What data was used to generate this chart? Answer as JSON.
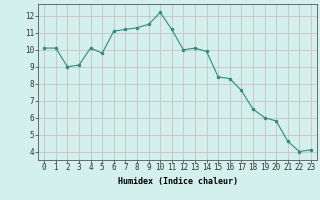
{
  "x": [
    0,
    1,
    2,
    3,
    4,
    5,
    6,
    7,
    8,
    9,
    10,
    11,
    12,
    13,
    14,
    15,
    16,
    17,
    18,
    19,
    20,
    21,
    22,
    23
  ],
  "y": [
    10.1,
    10.1,
    9.0,
    9.1,
    10.1,
    9.8,
    11.1,
    11.2,
    11.3,
    11.5,
    12.2,
    11.2,
    10.0,
    10.1,
    9.9,
    8.4,
    8.3,
    7.6,
    6.5,
    6.0,
    5.8,
    4.6,
    4.0,
    4.1
  ],
  "line_color": "#2e8b7a",
  "marker_color": "#2e8b7a",
  "bg_color": "#d4f0ec",
  "grid_color": "#c8b8b8",
  "xlabel": "Humidex (Indice chaleur)",
  "ylabel": "",
  "xlim": [
    -0.5,
    23.5
  ],
  "ylim": [
    3.5,
    12.7
  ],
  "yticks": [
    4,
    5,
    6,
    7,
    8,
    9,
    10,
    11,
    12
  ],
  "xticks": [
    0,
    1,
    2,
    3,
    4,
    5,
    6,
    7,
    8,
    9,
    10,
    11,
    12,
    13,
    14,
    15,
    16,
    17,
    18,
    19,
    20,
    21,
    22,
    23
  ],
  "xlabel_fontsize": 6.0,
  "tick_fontsize": 5.5
}
